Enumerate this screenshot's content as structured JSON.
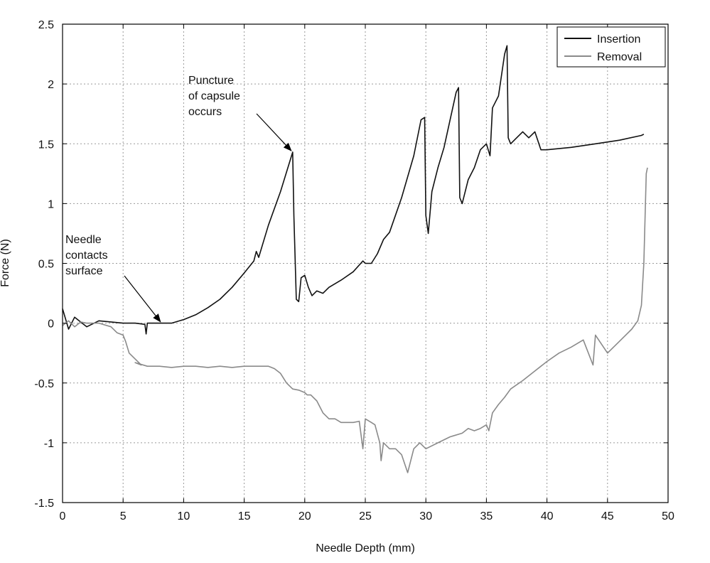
{
  "chart_data": {
    "type": "line",
    "title": "",
    "xlabel": "Needle Depth (mm)",
    "ylabel": "Force (N)",
    "xlim": [
      0,
      50
    ],
    "ylim": [
      -1.5,
      2.5
    ],
    "xticks": [
      0,
      5,
      10,
      15,
      20,
      25,
      30,
      35,
      40,
      45,
      50
    ],
    "yticks": [
      -1.5,
      -1,
      -0.5,
      0,
      0.5,
      1,
      1.5,
      2,
      2.5
    ],
    "xtick_labels": [
      "0",
      "5",
      "10",
      "15",
      "20",
      "25",
      "30",
      "35",
      "40",
      "45",
      "50"
    ],
    "ytick_labels": [
      "-1.5",
      "-1",
      "-0.5",
      "0",
      "0.5",
      "1",
      "1.5",
      "2",
      "2.5"
    ],
    "grid": true,
    "legend_position": "top-right",
    "series": [
      {
        "name": "Insertion",
        "color": "#111111",
        "x": [
          0,
          0.5,
          1,
          2,
          3,
          4,
          5,
          6,
          6.8,
          6.9,
          7,
          8,
          9,
          10,
          11,
          12,
          13,
          14,
          15,
          15.8,
          16,
          16.2,
          17,
          18,
          19.0,
          19.1,
          19.3,
          19.5,
          19.7,
          20,
          20.3,
          20.6,
          21,
          21.5,
          22,
          23,
          24,
          24.8,
          25,
          25.5,
          26,
          26.5,
          27,
          28,
          29,
          29.6,
          29.9,
          30.0,
          30.2,
          30.5,
          31,
          31.5,
          32,
          32.5,
          32.7,
          32.8,
          33,
          33.5,
          34,
          34.5,
          35,
          35.3,
          35.5,
          36,
          36.5,
          36.7,
          36.8,
          37,
          37.5,
          38,
          38.5,
          39,
          39.5,
          40,
          42,
          44,
          46,
          47.8,
          48.0
        ],
        "y": [
          0.12,
          -0.05,
          0.05,
          -0.03,
          0.02,
          0.01,
          0.0,
          0.0,
          -0.01,
          -0.09,
          0.0,
          0.0,
          0.0,
          0.03,
          0.07,
          0.13,
          0.2,
          0.3,
          0.42,
          0.52,
          0.6,
          0.55,
          0.82,
          1.1,
          1.43,
          0.9,
          0.2,
          0.18,
          0.38,
          0.4,
          0.3,
          0.23,
          0.27,
          0.25,
          0.3,
          0.36,
          0.43,
          0.52,
          0.5,
          0.5,
          0.58,
          0.7,
          0.76,
          1.05,
          1.4,
          1.7,
          1.72,
          0.9,
          0.75,
          1.1,
          1.3,
          1.47,
          1.7,
          1.93,
          1.97,
          1.05,
          1.0,
          1.2,
          1.3,
          1.45,
          1.5,
          1.4,
          1.8,
          1.9,
          2.25,
          2.32,
          1.55,
          1.5,
          1.55,
          1.6,
          1.55,
          1.6,
          1.45,
          1.45,
          1.47,
          1.5,
          1.53,
          1.57,
          1.58
        ]
      },
      {
        "name": "Removal",
        "color": "#8a8a8a",
        "x": [
          48.3,
          48.2,
          48.0,
          47.8,
          47.5,
          47,
          46.5,
          46,
          45.5,
          45,
          44,
          43.8,
          43,
          42,
          41,
          40,
          39,
          38,
          37,
          36.5,
          36,
          35.5,
          35.2,
          35,
          34.5,
          34,
          33.5,
          33,
          32,
          31,
          30,
          29.5,
          29,
          28.5,
          28,
          27.5,
          27,
          26.5,
          26.3,
          26.2,
          25.8,
          25.5,
          25,
          24.8,
          24.5,
          24,
          23,
          22.5,
          22,
          21.5,
          21,
          20.5,
          20.2,
          20,
          19.5,
          19,
          18.5,
          18,
          17.5,
          17,
          16,
          15,
          14,
          13,
          12,
          11,
          10,
          9,
          8,
          7,
          6,
          6.5,
          5.5,
          5.2,
          5,
          4.5,
          4,
          3,
          2,
          1.5,
          1,
          0.5,
          0
        ],
        "y": [
          1.3,
          1.25,
          0.5,
          0.15,
          0.02,
          -0.05,
          -0.1,
          -0.15,
          -0.2,
          -0.25,
          -0.1,
          -0.35,
          -0.14,
          -0.2,
          -0.25,
          -0.32,
          -0.4,
          -0.48,
          -0.55,
          -0.62,
          -0.68,
          -0.75,
          -0.9,
          -0.85,
          -0.88,
          -0.9,
          -0.88,
          -0.92,
          -0.95,
          -1.0,
          -1.05,
          -1.0,
          -1.05,
          -1.25,
          -1.1,
          -1.05,
          -1.05,
          -1.0,
          -1.15,
          -1.0,
          -0.85,
          -0.83,
          -0.8,
          -1.05,
          -0.82,
          -0.83,
          -0.83,
          -0.8,
          -0.8,
          -0.75,
          -0.65,
          -0.6,
          -0.6,
          -0.58,
          -0.56,
          -0.55,
          -0.5,
          -0.42,
          -0.38,
          -0.36,
          -0.36,
          -0.36,
          -0.37,
          -0.36,
          -0.37,
          -0.36,
          -0.36,
          -0.37,
          -0.36,
          -0.36,
          -0.33,
          -0.35,
          -0.25,
          -0.15,
          -0.1,
          -0.08,
          -0.03,
          0.0,
          0.0,
          0.01,
          -0.03,
          0.02,
          -0.02
        ]
      }
    ],
    "annotations": [
      {
        "lines": [
          "Puncture",
          "of capsule",
          "occurs"
        ],
        "arrow_to": [
          19.0,
          1.43
        ]
      },
      {
        "lines": [
          "Needle",
          "contacts",
          "surface"
        ],
        "arrow_to": [
          8.2,
          0.0
        ]
      }
    ]
  }
}
